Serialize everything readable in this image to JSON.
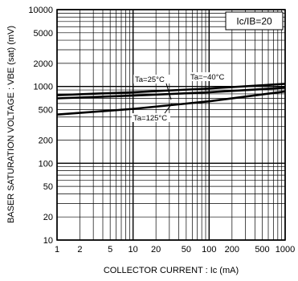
{
  "chart_data": {
    "type": "line",
    "xlabel": "COLLECTOR  CURRENT : Ic (mA)",
    "ylabel": "BASER SATURATION VOLTAGE : VBE (sat) (mV)",
    "condition": "Ic/IB=20",
    "x_scale": "log",
    "y_scale": "log",
    "xlim": [
      1,
      1000
    ],
    "ylim": [
      10,
      10000
    ],
    "grid": true,
    "x_ticks": [
      {
        "value": 1,
        "label": "1"
      },
      {
        "value": 2,
        "label": "2"
      },
      {
        "value": 5,
        "label": "5"
      },
      {
        "value": 10,
        "label": "10"
      },
      {
        "value": 20,
        "label": "20"
      },
      {
        "value": 50,
        "label": "50"
      },
      {
        "value": 100,
        "label": "100"
      },
      {
        "value": 200,
        "label": "200"
      },
      {
        "value": 500,
        "label": "500"
      },
      {
        "value": 1000,
        "label": "1000"
      }
    ],
    "y_ticks": [
      {
        "value": 10,
        "label": "10"
      },
      {
        "value": 20,
        "label": "20"
      },
      {
        "value": 50,
        "label": "50"
      },
      {
        "value": 100,
        "label": "100"
      },
      {
        "value": 200,
        "label": "200"
      },
      {
        "value": 500,
        "label": "500"
      },
      {
        "value": 1000,
        "label": "1000"
      },
      {
        "value": 2000,
        "label": "2000"
      },
      {
        "value": 5000,
        "label": "5000"
      },
      {
        "value": 10000,
        "label": "10000"
      }
    ],
    "series": [
      {
        "name": "Ta=25°C",
        "x": [
          1,
          10,
          100,
          1000
        ],
        "y": [
          700,
          760,
          840,
          960
        ]
      },
      {
        "name": "Ta=−40°C",
        "x": [
          1,
          10,
          100,
          1000
        ],
        "y": [
          770,
          840,
          940,
          1080
        ]
      },
      {
        "name": "Ta=125°C",
        "x": [
          1,
          10,
          100,
          1000
        ],
        "y": [
          430,
          510,
          640,
          860
        ]
      }
    ],
    "annotations": [
      {
        "series": "Ta=25°C",
        "text": "Ta=25°C"
      },
      {
        "series": "Ta=−40°C",
        "text": "Ta=−40°C"
      },
      {
        "series": "Ta=125°C",
        "text": "Ta=125°C"
      }
    ]
  }
}
